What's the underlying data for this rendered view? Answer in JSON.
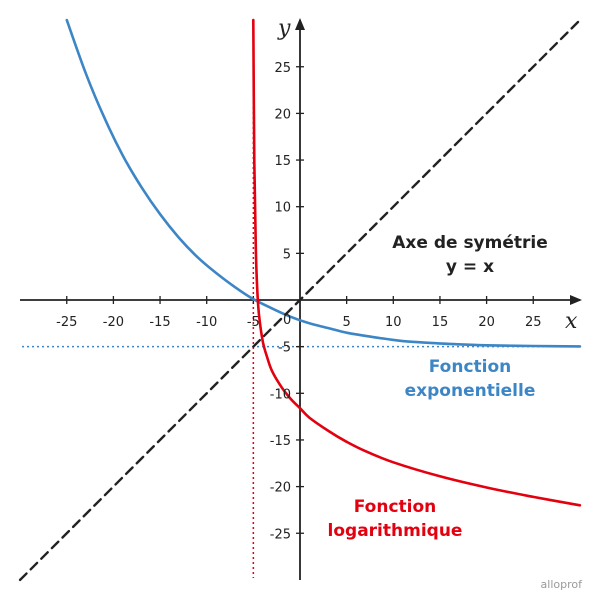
{
  "chart_data": {
    "type": "line",
    "xlabel": "x",
    "ylabel": "y",
    "xlim": [
      -30,
      30
    ],
    "ylim": [
      -30,
      30
    ],
    "x_ticks": [
      -25,
      -20,
      -15,
      -10,
      -5,
      5,
      10,
      15,
      20,
      25
    ],
    "y_ticks": [
      -25,
      -20,
      -15,
      -10,
      -5,
      5,
      10,
      15,
      20,
      25
    ],
    "origin_label": "0",
    "grid": false,
    "colors": {
      "exponential": "#3d86c6",
      "logarithmic": "#e3000f",
      "symmetry": "#222222"
    },
    "series": [
      {
        "name": "Fonction exponentielle",
        "color": "#3d86c6",
        "points": [
          [
            -25,
            30
          ],
          [
            -23,
            24.4
          ],
          [
            -21,
            19.6
          ],
          [
            -19,
            15.5
          ],
          [
            -17,
            12.1
          ],
          [
            -15,
            9.2
          ],
          [
            -13,
            6.7
          ],
          [
            -11,
            4.6
          ],
          [
            -9,
            2.9
          ],
          [
            -7,
            1.4
          ],
          [
            -5,
            0.1
          ],
          [
            -3,
            -0.9
          ],
          [
            -1,
            -1.8
          ],
          [
            1,
            -2.5
          ],
          [
            3,
            -3
          ],
          [
            5,
            -3.5
          ],
          [
            8,
            -4
          ],
          [
            11,
            -4.4
          ],
          [
            14,
            -4.6
          ],
          [
            17,
            -4.75
          ],
          [
            20,
            -4.85
          ],
          [
            25,
            -4.93
          ],
          [
            30,
            -4.97
          ]
        ]
      },
      {
        "name": "Fonction logarithmique",
        "color": "#e3000f",
        "points": [
          [
            -5,
            30
          ],
          [
            -4.9,
            14.8
          ],
          [
            -4.75,
            6.2
          ],
          [
            -4.6,
            1.5
          ],
          [
            -4.4,
            -1.5
          ],
          [
            -4,
            -4.4
          ],
          [
            -3.5,
            -6.2
          ],
          [
            -3,
            -7.6
          ],
          [
            -2,
            -9.3
          ],
          [
            -1,
            -10.6
          ],
          [
            0,
            -11.6
          ],
          [
            1,
            -12.6
          ],
          [
            3,
            -14
          ],
          [
            5,
            -15.2
          ],
          [
            7,
            -16.2
          ],
          [
            10,
            -17.4
          ],
          [
            15,
            -18.9
          ],
          [
            20,
            -20.1
          ],
          [
            25,
            -21.1
          ],
          [
            30,
            -22
          ]
        ]
      },
      {
        "name": "Axe de symétrie",
        "equation": "y = x",
        "color": "#222222",
        "dashed": true,
        "points": [
          [
            -30,
            -30
          ],
          [
            30,
            30
          ]
        ]
      }
    ],
    "asymptotes": [
      {
        "orientation": "horizontal",
        "value": -5,
        "color": "#3d86c6"
      },
      {
        "orientation": "vertical",
        "value": -5,
        "color": "#e3000f"
      }
    ],
    "annotations": {
      "symmetry_title": "Axe de symétrie",
      "symmetry_equation": "y = x",
      "exp_line1": "Fonction",
      "exp_line2": "exponentielle",
      "log_line1": "Fonction",
      "log_line2": "logarithmique"
    },
    "watermark": "alloprof"
  }
}
